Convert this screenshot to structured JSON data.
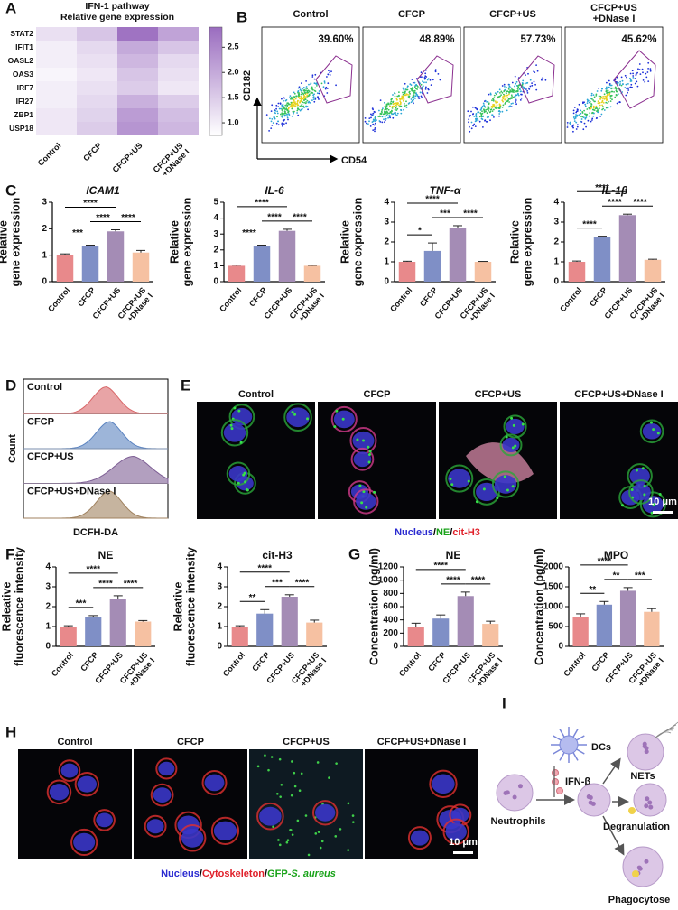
{
  "panel_labels": [
    "A",
    "B",
    "C",
    "D",
    "E",
    "F",
    "G",
    "H",
    "I"
  ],
  "heatmap": {
    "title": "IFN-1 pathway",
    "subtitle": "Relative gene expression",
    "rows": [
      "STAT2",
      "IFIT1",
      "OASL2",
      "OAS3",
      "IRF7",
      "IFI27",
      "ZBP1",
      "USP18"
    ],
    "columns": [
      "Control",
      "CFCP",
      "CFCP+US",
      [
        "CFCP+US",
        "+DNase I"
      ]
    ],
    "values": [
      [
        1.2,
        1.6,
        2.8,
        2.1
      ],
      [
        1.0,
        1.3,
        2.0,
        1.6
      ],
      [
        1.0,
        1.2,
        1.8,
        1.3
      ],
      [
        0.9,
        1.1,
        1.6,
        1.2
      ],
      [
        1.0,
        1.2,
        1.5,
        1.1
      ],
      [
        1.0,
        1.3,
        1.9,
        1.5
      ],
      [
        1.1,
        1.4,
        2.2,
        1.7
      ],
      [
        1.1,
        1.5,
        2.3,
        1.8
      ]
    ],
    "clim": [
      0.75,
      2.9
    ],
    "colors": [
      "#ffffff",
      "#9a6cbf"
    ],
    "colorbar_ticks": [
      {
        "value": 1,
        "label": "1.0"
      },
      1.5,
      {
        "value": 2,
        "label": "2.0"
      },
      2.5
    ]
  },
  "flow": {
    "panels": [
      "Control",
      "CFCP",
      "CFCP+US",
      [
        "CFCP+US",
        "+DNase I"
      ]
    ],
    "gate_labels": [
      "39.60%",
      "48.89%",
      "57.73%",
      "45.62%"
    ],
    "ylabel": "CD182",
    "xlabel": "CD54",
    "gate_color": "#8b2f8f"
  },
  "chart_data": [
    {
      "type": "bar",
      "title": "ICAM1",
      "title_italic": true,
      "ylabel": [
        "Relative",
        "gene expression"
      ],
      "categories": [
        "Control",
        "CFCP",
        "CFCP+US",
        [
          "CFCP+US",
          "+DNase I"
        ]
      ],
      "values": [
        1.0,
        1.35,
        1.9,
        1.1
      ],
      "errors": [
        0.05,
        0.03,
        0.06,
        0.08
      ],
      "colors": [
        "#e8898b",
        "#7f8fc6",
        "#a48cb5",
        "#f6c1a2"
      ],
      "ylim": [
        0,
        3
      ],
      "yticks": [
        0,
        1,
        2,
        3
      ],
      "comparisons": [
        {
          "label": "***",
          "between": [
            0,
            1
          ]
        },
        {
          "label": "****",
          "between": [
            1,
            2
          ]
        },
        {
          "label": "****",
          "between": [
            2,
            3
          ]
        },
        {
          "label": "****",
          "between": [
            0,
            2
          ]
        }
      ]
    },
    {
      "type": "bar",
      "title": "IL-6",
      "title_italic": true,
      "ylabel": [
        "Relative",
        "gene expression"
      ],
      "categories": [
        "Control",
        "CFCP",
        "CFCP+US",
        [
          "CFCP+US",
          "+DNase I"
        ]
      ],
      "values": [
        1.0,
        2.25,
        3.2,
        1.0
      ],
      "errors": [
        0.04,
        0.05,
        0.1,
        0.03
      ],
      "colors": [
        "#e8898b",
        "#7f8fc6",
        "#a48cb5",
        "#f6c1a2"
      ],
      "ylim": [
        0,
        5
      ],
      "yticks": [
        0,
        1,
        2,
        3,
        4,
        5
      ],
      "comparisons": [
        {
          "label": "****",
          "between": [
            0,
            1
          ]
        },
        {
          "label": "****",
          "between": [
            1,
            2
          ]
        },
        {
          "label": "****",
          "between": [
            2,
            3
          ]
        },
        {
          "label": "****",
          "between": [
            0,
            2
          ]
        }
      ]
    },
    {
      "type": "bar",
      "title": "TNF-α",
      "title_italic": true,
      "ylabel": [
        "Relative",
        "gene expression"
      ],
      "categories": [
        "Control",
        "CFCP",
        "CFCP+US",
        [
          "CFCP+US",
          "+DNase I"
        ]
      ],
      "values": [
        1.0,
        1.55,
        2.7,
        1.0
      ],
      "errors": [
        0.03,
        0.4,
        0.12,
        0.02
      ],
      "colors": [
        "#e8898b",
        "#7f8fc6",
        "#a48cb5",
        "#f6c1a2"
      ],
      "ylim": [
        0,
        4
      ],
      "yticks": [
        0,
        1,
        2,
        3,
        4
      ],
      "comparisons": [
        {
          "label": "*",
          "between": [
            0,
            1
          ]
        },
        {
          "label": "***",
          "between": [
            1,
            2
          ]
        },
        {
          "label": "****",
          "between": [
            2,
            3
          ]
        },
        {
          "label": "****",
          "between": [
            0,
            2
          ]
        }
      ]
    },
    {
      "type": "bar",
      "title": "IL-1β",
      "title_italic": true,
      "ylabel": [
        "Relative",
        "gene expression"
      ],
      "categories": [
        "Control",
        "CFCP",
        "CFCP+US",
        [
          "CFCP+US",
          "+DNase I"
        ]
      ],
      "values": [
        1.0,
        2.25,
        3.35,
        1.1
      ],
      "errors": [
        0.04,
        0.04,
        0.05,
        0.03
      ],
      "colors": [
        "#e8898b",
        "#7f8fc6",
        "#a48cb5",
        "#f6c1a2"
      ],
      "ylim": [
        0,
        4
      ],
      "yticks": [
        0,
        1,
        2,
        3,
        4
      ],
      "comparisons": [
        {
          "label": "****",
          "between": [
            0,
            1
          ]
        },
        {
          "label": "****",
          "between": [
            1,
            2
          ]
        },
        {
          "label": "****",
          "between": [
            2,
            3
          ]
        },
        {
          "label": "****",
          "between": [
            0,
            2
          ]
        }
      ]
    },
    {
      "type": "bar",
      "title": "NE",
      "title_italic": false,
      "ylabel": [
        "Releative",
        "fluorescence intensity"
      ],
      "categories": [
        "Control",
        "CFCP",
        "CFCP+US",
        [
          "CFCP+US",
          "+DNase I"
        ]
      ],
      "values": [
        1.0,
        1.5,
        2.4,
        1.25
      ],
      "errors": [
        0.04,
        0.05,
        0.15,
        0.05
      ],
      "colors": [
        "#e8898b",
        "#7f8fc6",
        "#a48cb5",
        "#f6c1a2"
      ],
      "ylim": [
        0,
        4
      ],
      "yticks": [
        0,
        1,
        2,
        3,
        4
      ],
      "comparisons": [
        {
          "label": "***",
          "between": [
            0,
            1
          ]
        },
        {
          "label": "****",
          "between": [
            1,
            2
          ]
        },
        {
          "label": "****",
          "between": [
            2,
            3
          ]
        },
        {
          "label": "****",
          "between": [
            0,
            2
          ]
        }
      ]
    },
    {
      "type": "bar",
      "title": "cit-H3",
      "title_italic": false,
      "ylabel": [
        "Releative",
        "fluorescence intensity"
      ],
      "categories": [
        "Control",
        "CFCP",
        "CFCP+US",
        [
          "CFCP+US",
          "+DNase I"
        ]
      ],
      "values": [
        1.0,
        1.65,
        2.5,
        1.2
      ],
      "errors": [
        0.04,
        0.2,
        0.1,
        0.12
      ],
      "colors": [
        "#e8898b",
        "#7f8fc6",
        "#a48cb5",
        "#f6c1a2"
      ],
      "ylim": [
        0,
        4
      ],
      "yticks": [
        0,
        1,
        2,
        3,
        4
      ],
      "comparisons": [
        {
          "label": "**",
          "between": [
            0,
            1
          ]
        },
        {
          "label": "***",
          "between": [
            1,
            2
          ]
        },
        {
          "label": "****",
          "between": [
            2,
            3
          ]
        },
        {
          "label": "****",
          "between": [
            0,
            2
          ]
        }
      ]
    },
    {
      "type": "bar",
      "title": "NE",
      "title_italic": false,
      "ylabel": [
        "Concentration (pg/ml)"
      ],
      "categories": [
        "Control",
        "CFCP",
        "CFCP+US",
        [
          "CFCP+US",
          "+DNase I"
        ]
      ],
      "values": [
        300,
        420,
        760,
        340
      ],
      "errors": [
        50,
        55,
        60,
        40
      ],
      "colors": [
        "#e8898b",
        "#7f8fc6",
        "#a48cb5",
        "#f6c1a2"
      ],
      "ylim": [
        0,
        1200
      ],
      "yticks": [
        0,
        200,
        400,
        600,
        800,
        1000,
        1200
      ],
      "comparisons": [
        {
          "label": "****",
          "between": [
            1,
            2
          ]
        },
        {
          "label": "****",
          "between": [
            2,
            3
          ]
        },
        {
          "label": "****",
          "between": [
            0,
            2
          ]
        }
      ]
    },
    {
      "type": "bar",
      "title": "MPO",
      "title_italic": false,
      "ylabel": [
        "Concentration (pg/ml)"
      ],
      "categories": [
        "Control",
        "CFCP",
        "CFCP+US",
        [
          "CFCP+US",
          "+DNase I"
        ]
      ],
      "values": [
        750,
        1050,
        1400,
        870
      ],
      "errors": [
        70,
        80,
        80,
        80
      ],
      "colors": [
        "#e8898b",
        "#7f8fc6",
        "#a48cb5",
        "#f6c1a2"
      ],
      "ylim": [
        0,
        2000
      ],
      "yticks": [
        0,
        500,
        1000,
        1500,
        2000
      ],
      "comparisons": [
        {
          "label": "**",
          "between": [
            0,
            1
          ]
        },
        {
          "label": "**",
          "between": [
            1,
            2
          ]
        },
        {
          "label": "***",
          "between": [
            2,
            3
          ]
        },
        {
          "label": "****",
          "between": [
            0,
            2
          ]
        }
      ]
    }
  ],
  "histogram": {
    "labels": [
      "Control",
      "CFCP",
      "CFCP+US",
      "CFCP+US+DNase I"
    ],
    "colors": [
      "#d9686a",
      "#5b83c0",
      "#7e5f95",
      "#a0825f"
    ],
    "xlabel": "DCFH-DA",
    "ylabel": "Count"
  },
  "microscopy_E": {
    "panels": [
      "Control",
      "CFCP",
      "CFCP+US",
      "CFCP+US+DNase I"
    ],
    "scale_bar": "10 μm",
    "legend": [
      {
        "text": "Nucleus",
        "color": "#2a2ad0"
      },
      {
        "text": "/",
        "color": "#000000"
      },
      {
        "text": "NE",
        "color": "#19a319"
      },
      {
        "text": "/",
        "color": "#000000"
      },
      {
        "text": "cit-H3",
        "color": "#e0202a"
      }
    ]
  },
  "microscopy_H": {
    "panels": [
      "Control",
      "CFCP",
      "CFCP+US",
      "CFCP+US+DNase I"
    ],
    "scale_bar": "10 μm",
    "legend": [
      {
        "text": "Nucleus",
        "color": "#2a2ad0"
      },
      {
        "text": "/",
        "color": "#000000"
      },
      {
        "text": "Cytoskeleton",
        "color": "#e0202a"
      },
      {
        "text": "/",
        "color": "#000000"
      },
      {
        "text": "GFP-",
        "color": "#19a319"
      },
      {
        "text": "S. aureus",
        "color": "#19a319",
        "italic": true
      }
    ]
  },
  "diagram": {
    "dcs": "DCs",
    "cytokine": "IFN-β",
    "neutrophils": "Neutrophils",
    "nets": "NETs",
    "degranulation": "Degranulation",
    "phagocytose": "Phagocytose"
  }
}
